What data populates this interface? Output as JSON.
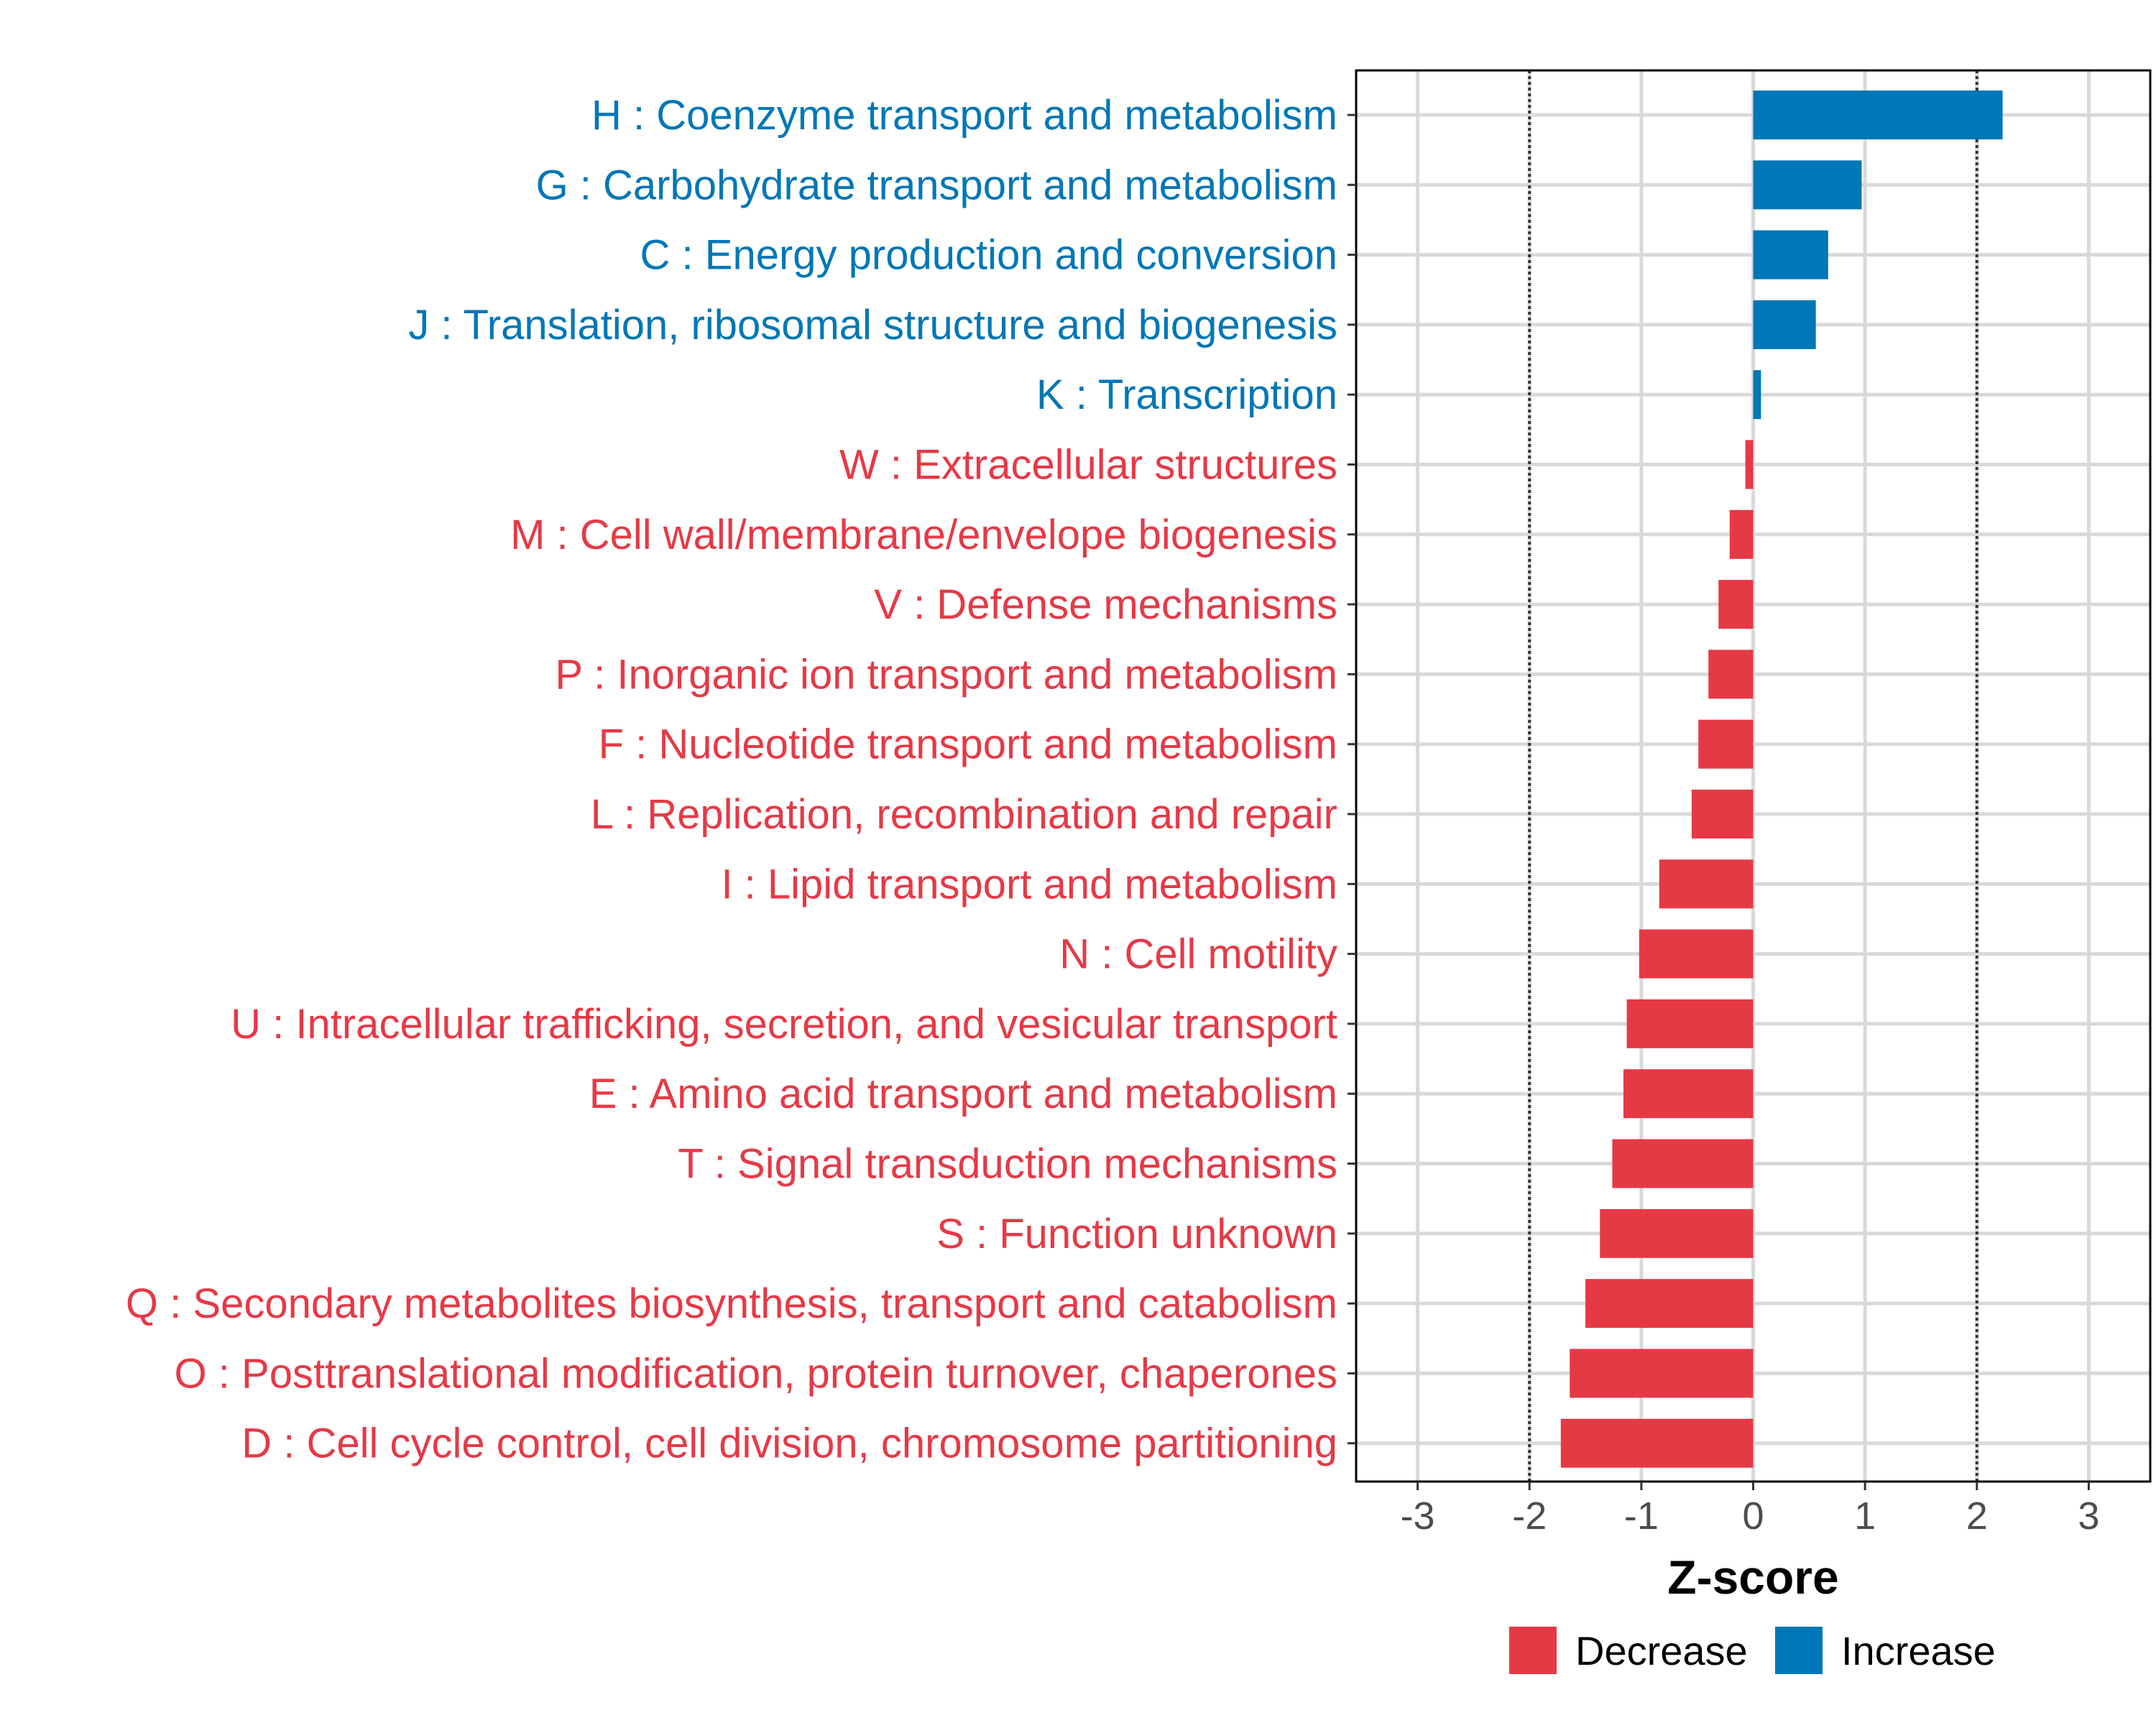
{
  "chart_data": {
    "type": "bar",
    "orientation": "horizontal",
    "title": "",
    "xlabel": "Z-score",
    "ylabel": "",
    "xlim": [
      -3.55,
      3.55
    ],
    "xticks": [
      -3,
      -2,
      -1,
      0,
      1,
      2,
      3
    ],
    "xtick_labels": [
      "-3",
      "-2",
      "-1",
      "0",
      "1",
      "2",
      "3"
    ],
    "reference_lines": [
      -2,
      2
    ],
    "grid": true,
    "legend_position": "bottom",
    "categories": [
      "H : Coenzyme transport and metabolism",
      "G : Carbohydrate transport and metabolism",
      "C : Energy production and conversion",
      "J : Translation, ribosomal structure and biogenesis",
      "K : Transcription",
      "W : Extracellular structures",
      "M : Cell wall/membrane/envelope biogenesis",
      "V : Defense mechanisms",
      "P : Inorganic ion transport and metabolism",
      "F : Nucleotide transport and metabolism",
      "L : Replication, recombination and repair",
      "I : Lipid transport and metabolism",
      "N : Cell motility",
      "U : Intracellular trafficking, secretion, and vesicular transport",
      "E : Amino acid transport and metabolism",
      "T : Signal transduction mechanisms",
      "S : Function unknown",
      "Q : Secondary metabolites biosynthesis, transport and catabolism",
      "O : Posttranslational modification, protein turnover, chaperones",
      "D : Cell cycle control, cell division, chromosome partitioning"
    ],
    "values": [
      2.23,
      0.97,
      0.67,
      0.56,
      0.07,
      -0.07,
      -0.21,
      -0.31,
      -0.4,
      -0.49,
      -0.55,
      -0.84,
      -1.02,
      -1.13,
      -1.16,
      -1.26,
      -1.37,
      -1.5,
      -1.64,
      -1.72
    ],
    "groups": [
      "Increase",
      "Increase",
      "Increase",
      "Increase",
      "Increase",
      "Decrease",
      "Decrease",
      "Decrease",
      "Decrease",
      "Decrease",
      "Decrease",
      "Decrease",
      "Decrease",
      "Decrease",
      "Decrease",
      "Decrease",
      "Decrease",
      "Decrease",
      "Decrease",
      "Decrease"
    ],
    "legend": [
      {
        "label": "Decrease",
        "color": "#E63946"
      },
      {
        "label": "Increase",
        "color": "#0077B6"
      }
    ],
    "colors": {
      "Decrease": "#E63946",
      "Increase": "#0077B6"
    }
  }
}
